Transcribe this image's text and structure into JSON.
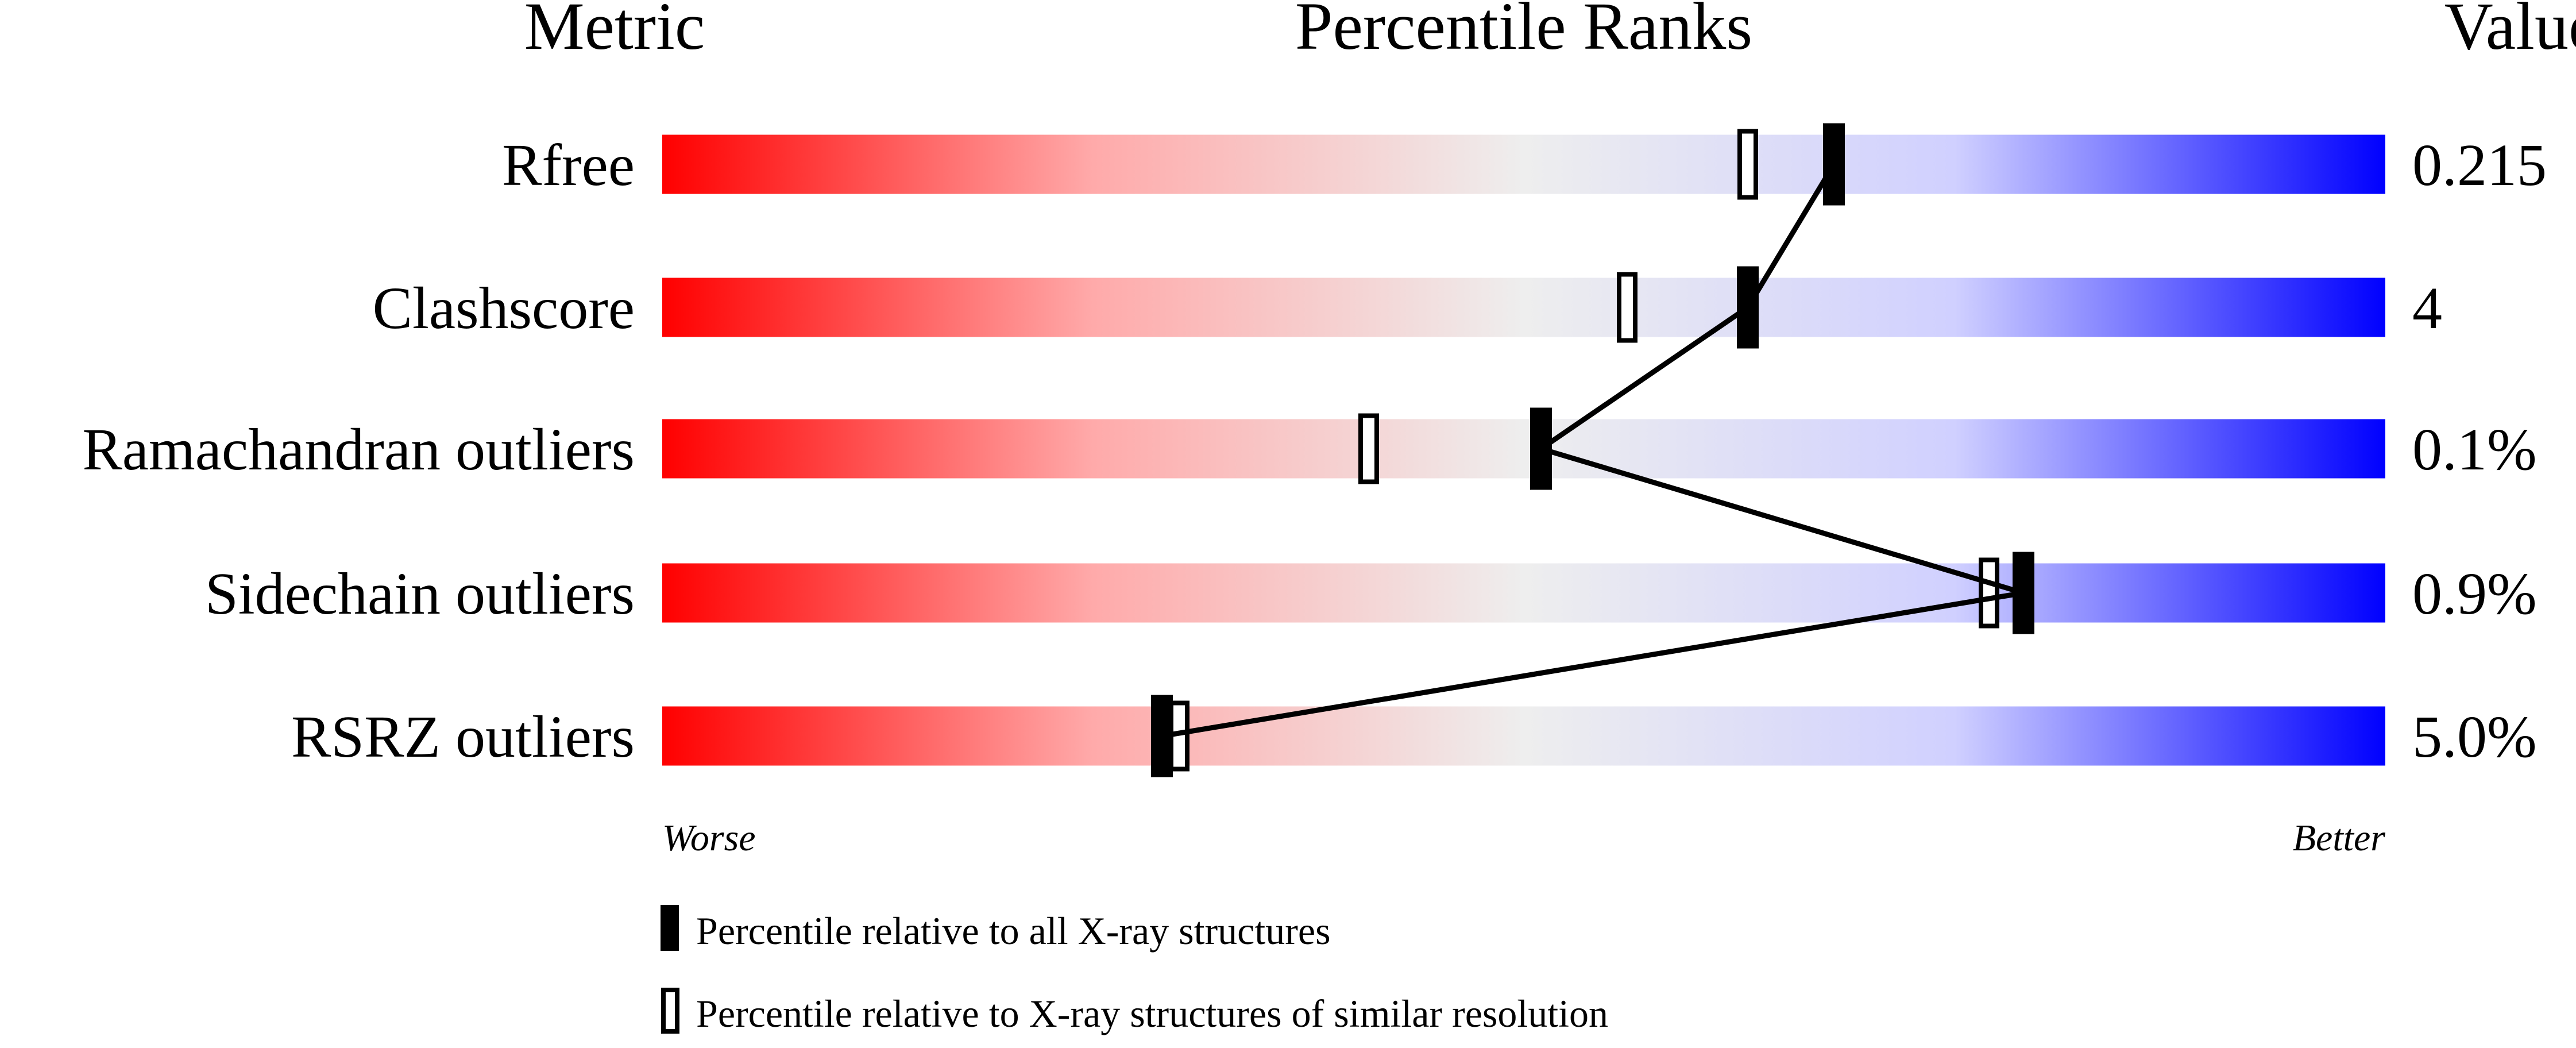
{
  "chart_data": {
    "type": "percentile-slider",
    "headers": {
      "metric": "Metric",
      "ranks": "Percentile Ranks",
      "value": "Value"
    },
    "xlim": [
      0,
      100
    ],
    "axis_ends": {
      "left": "Worse",
      "right": "Better"
    },
    "rows": [
      {
        "metric": "Rfree",
        "value": "0.215",
        "percentile_all": 68,
        "percentile_similar": 63
      },
      {
        "metric": "Clashscore",
        "value": "4",
        "percentile_all": 63,
        "percentile_similar": 56
      },
      {
        "metric": "Ramachandran outliers",
        "value": "0.1%",
        "percentile_all": 51,
        "percentile_similar": 41
      },
      {
        "metric": "Sidechain outliers",
        "value": "0.9%",
        "percentile_all": 79,
        "percentile_similar": 77
      },
      {
        "metric": "RSRZ outliers",
        "value": "5.0%",
        "percentile_all": 29,
        "percentile_similar": 30
      }
    ],
    "legend": {
      "filled": "Percentile relative to all X-ray structures",
      "open": "Percentile relative to X-ray structures of similar resolution"
    },
    "colors": {
      "worse": "#ff0000",
      "middle": "#eeeeee",
      "better_light": "#d0d0ff",
      "better": "#0000ff",
      "marker": "#000000"
    }
  }
}
